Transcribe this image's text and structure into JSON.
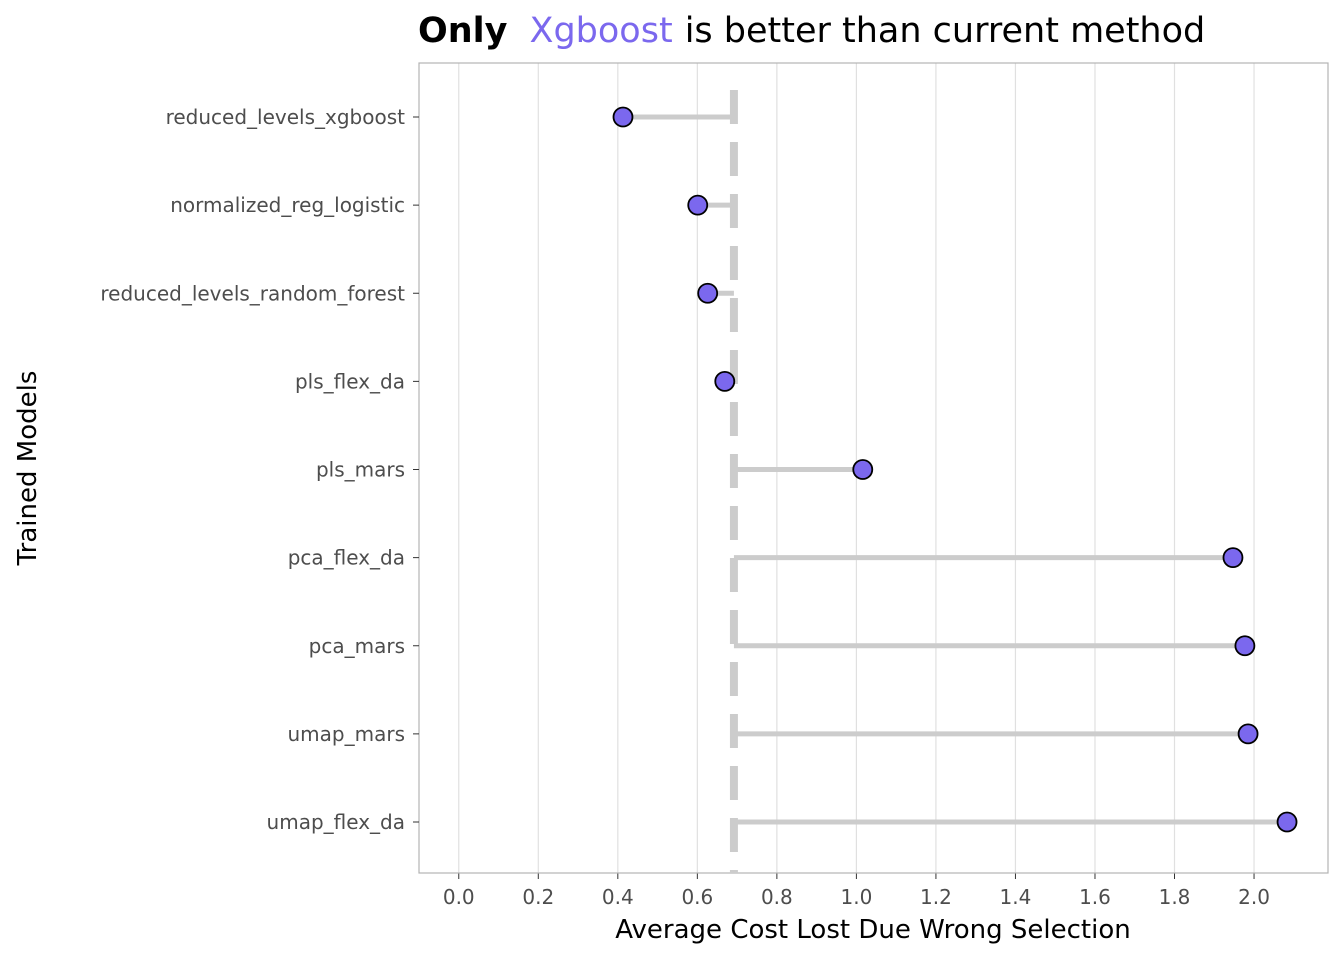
{
  "chart_data": {
    "type": "lollipop",
    "title_parts": [
      "Only",
      "Xgboost",
      "is better than current method"
    ],
    "title_highlight_color": "#7b68ee",
    "x_label": "Average Cost Lost Due Wrong Selection",
    "y_label": "Trained Models",
    "categories": [
      "reduced_levels_xgboost",
      "normalized_reg_logistic",
      "reduced_levels_random_forest",
      "pls_flex_da",
      "pls_mars",
      "pca_flex_da",
      "pca_mars",
      "umap_mars",
      "umap_flex_da"
    ],
    "series": [
      {
        "color": "#7b68ee",
        "values": [
          0.413,
          0.601,
          0.626,
          0.669,
          1.016,
          1.947,
          1.977,
          1.985,
          2.083
        ]
      }
    ],
    "reference_line": 0.692,
    "xlim": [
      -0.1,
      2.186
    ],
    "xticks": [
      {
        "value": 0,
        "label": "0.0"
      },
      0.2,
      0.4,
      0.6,
      0.8,
      {
        "value": 1,
        "label": "1.0"
      },
      1.2,
      1.4,
      1.6,
      1.8,
      {
        "value": 2,
        "label": "2.0"
      }
    ],
    "grid": true
  }
}
